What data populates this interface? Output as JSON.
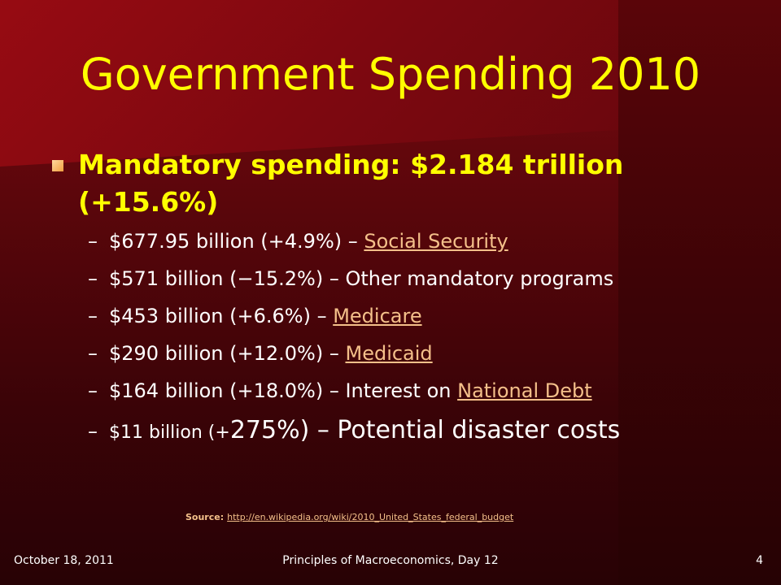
{
  "title": "Government Spending 2010",
  "main_bullet": "Mandatory spending: $2.184 trillion (+15.6%)",
  "items": [
    {
      "dash": "–",
      "text": "$677.95 billion (+4.9%) – ",
      "link": "Social Security"
    },
    {
      "dash": "–",
      "text": "$571 billion (−15.2%) – Other mandatory programs"
    },
    {
      "dash": "–",
      "text": "$453 billion (+6.6%) – ",
      "link": "Medicare"
    },
    {
      "dash": "–",
      "text": "$290 billion (+12.0%) – ",
      "link": "Medicaid"
    },
    {
      "dash": "–",
      "text": "$164 billion (+18.0%) – Interest on ",
      "link": "National Debt"
    },
    {
      "dash": "–",
      "text_small": "$11 billion (+",
      "text_large": "275%) – Potential disaster costs"
    }
  ],
  "source": {
    "label": "Source:",
    "url": "http://en.wikipedia.org/wiki/2010_United_States_federal_budget"
  },
  "footer": {
    "date": "October 18, 2011",
    "course": "Principles of Macroeconomics, Day 12",
    "slide_number": "4"
  },
  "colors": {
    "title": "#ffff00",
    "link": "#f4c08a",
    "bullet": "#f0a040",
    "background": "#5a060b"
  }
}
